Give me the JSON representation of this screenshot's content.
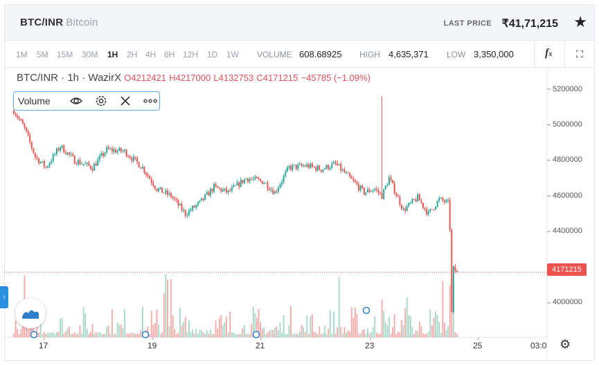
{
  "header": {
    "pair": "BTC/INR",
    "name": "Bitcoin",
    "last_price_label": "LAST PRICE",
    "last_price": "₹41,71,215",
    "star_icon": "star-icon"
  },
  "toolbar": {
    "timeframes": [
      "1M",
      "5M",
      "15M",
      "30M",
      "1H",
      "2H",
      "4H",
      "6H",
      "12H",
      "1D",
      "1W"
    ],
    "active_timeframe": "1H",
    "volume_label": "VOLUME",
    "volume_value": "608.68925",
    "high_label": "HIGH",
    "high_value": "4,635,371",
    "low_label": "LOW",
    "low_value": "3,350,000",
    "indicator_icon": "function-icon",
    "fullscreen_icon": "fullscreen-icon"
  },
  "legend": {
    "title": "BTC/INR · 1h · WazirX",
    "open": "O4212421",
    "high": "H4217000",
    "low": "L4132753",
    "close": "C4171215",
    "change": "−45785 (−1.09%)"
  },
  "volume_study": {
    "label": "Volume",
    "icons": [
      "eye-icon",
      "settings-icon",
      "close-icon",
      "more-icon"
    ]
  },
  "last_price_tag": "4171215",
  "colors": {
    "up": "#26a69a",
    "down": "#ef5350",
    "up_vol": "#a5d6c6",
    "down_vol": "#f5a8a6"
  },
  "chart_data": {
    "type": "candlestick",
    "y_ticks": [
      "5200000",
      "5000000",
      "4800000",
      "4600000",
      "4400000",
      "4000000"
    ],
    "y_tick_values": [
      5200000,
      5000000,
      4800000,
      4600000,
      4400000,
      4000000
    ],
    "ylim": [
      3800000,
      5280000
    ],
    "x_ticks": [
      "17",
      "19",
      "21",
      "23",
      "25",
      "03:0"
    ],
    "last_price": 4171215,
    "anchors": [
      {
        "t": 0,
        "p": 5080000
      },
      {
        "t": 6,
        "p": 4980000
      },
      {
        "t": 12,
        "p": 4820000
      },
      {
        "t": 18,
        "p": 4760000
      },
      {
        "t": 26,
        "p": 4880000
      },
      {
        "t": 34,
        "p": 4800000
      },
      {
        "t": 44,
        "p": 4760000
      },
      {
        "t": 52,
        "p": 4860000
      },
      {
        "t": 62,
        "p": 4850000
      },
      {
        "t": 72,
        "p": 4760000
      },
      {
        "t": 80,
        "p": 4640000
      },
      {
        "t": 88,
        "p": 4600000
      },
      {
        "t": 96,
        "p": 4500000
      },
      {
        "t": 104,
        "p": 4560000
      },
      {
        "t": 112,
        "p": 4650000
      },
      {
        "t": 120,
        "p": 4620000
      },
      {
        "t": 130,
        "p": 4700000
      },
      {
        "t": 140,
        "p": 4680000
      },
      {
        "t": 146,
        "p": 4620000
      },
      {
        "t": 154,
        "p": 4760000
      },
      {
        "t": 164,
        "p": 4770000
      },
      {
        "t": 172,
        "p": 4750000
      },
      {
        "t": 180,
        "p": 4780000
      },
      {
        "t": 188,
        "p": 4700000
      },
      {
        "t": 196,
        "p": 4620000
      },
      {
        "t": 202,
        "p": 4640000
      },
      {
        "t": 206,
        "p": 4600000
      },
      {
        "t": 210,
        "p": 4700000
      },
      {
        "t": 218,
        "p": 4520000
      },
      {
        "t": 226,
        "p": 4590000
      },
      {
        "t": 232,
        "p": 4500000
      },
      {
        "t": 238,
        "p": 4580000
      },
      {
        "t": 243,
        "p": 4560000
      },
      {
        "t": 244,
        "p": 4420000
      },
      {
        "t": 245,
        "p": 3940000
      },
      {
        "t": 246,
        "p": 4190000
      },
      {
        "t": 248,
        "p": 4171215
      }
    ]
  }
}
